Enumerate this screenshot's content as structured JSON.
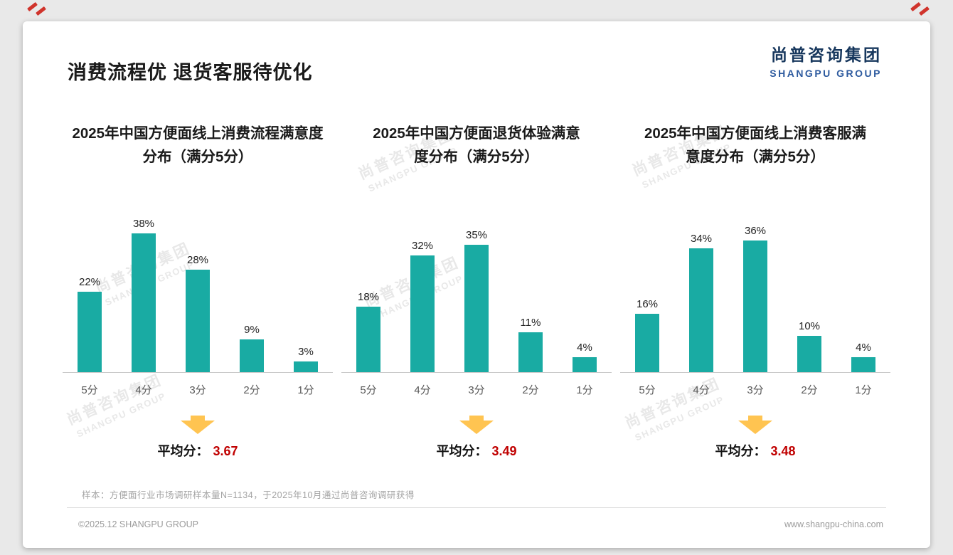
{
  "page": {
    "title": "消费流程优 退货客服待优化",
    "logo": {
      "cn": "尚普咨询集团",
      "en": "SHANGPU GROUP"
    },
    "watermark": {
      "cn": "尚普咨询集团",
      "en": "SHANGPU GROUP"
    }
  },
  "colors": {
    "bar": "#19ABA3",
    "arrow": "#FFC451",
    "average": "#C00000",
    "logo_cn": "#17375D",
    "logo_en": "#2E5B9F",
    "corner_red": "#D0342C"
  },
  "chart_data": [
    {
      "type": "bar",
      "title": "2025年中国方便面线上消费流程满意度分布（满分5分）",
      "title_lines": [
        "2025年中国方便面线上消费流程满意度",
        "分布（满分5分）"
      ],
      "categories": [
        "5分",
        "4分",
        "3分",
        "2分",
        "1分"
      ],
      "values": [
        22,
        38,
        28,
        9,
        3
      ],
      "unit": "%",
      "ylim": [
        0,
        40
      ],
      "grid": false,
      "average_label": "平均分：",
      "average": "3.67"
    },
    {
      "type": "bar",
      "title": "2025年中国方便面退货体验满意度分布（满分5分）",
      "title_lines": [
        "2025年中国方便面退货体验满意",
        "度分布（满分5分）"
      ],
      "categories": [
        "5分",
        "4分",
        "3分",
        "2分",
        "1分"
      ],
      "values": [
        18,
        32,
        35,
        11,
        4
      ],
      "unit": "%",
      "ylim": [
        0,
        40
      ],
      "grid": false,
      "average_label": "平均分：",
      "average": "3.49"
    },
    {
      "type": "bar",
      "title": "2025年中国方便面线上消费客服满意度分布（满分5分）",
      "title_lines": [
        "2025年中国方便面线上消费客服满",
        "意度分布（满分5分）"
      ],
      "categories": [
        "5分",
        "4分",
        "3分",
        "2分",
        "1分"
      ],
      "values": [
        16,
        34,
        36,
        10,
        4
      ],
      "unit": "%",
      "ylim": [
        0,
        40
      ],
      "grid": false,
      "average_label": "平均分：",
      "average": "3.48"
    }
  ],
  "footer": {
    "footnote": "样本：方便面行业市场调研样本量N=1134，于2025年10月通过尚普咨询调研获得",
    "copyright": "©2025.12 SHANGPU GROUP",
    "website": "www.shangpu-china.com"
  }
}
